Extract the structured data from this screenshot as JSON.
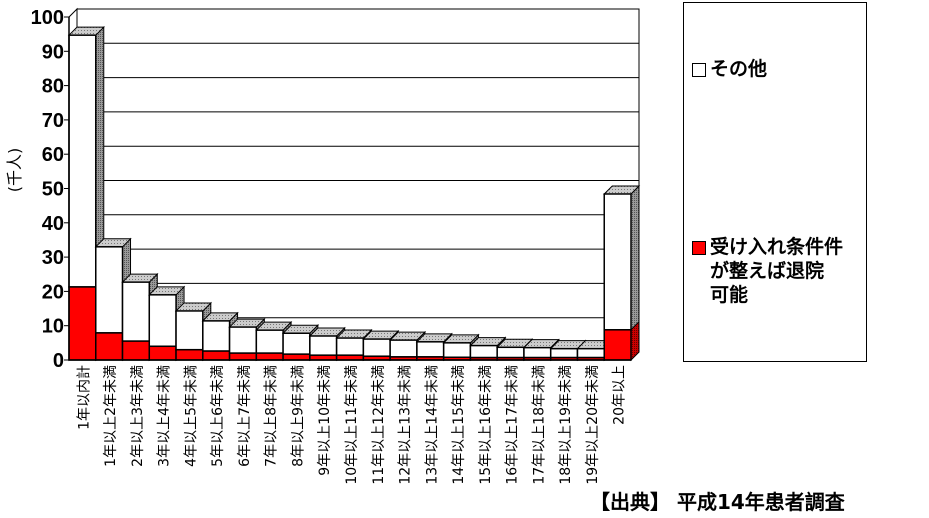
{
  "chart_data": {
    "type": "bar",
    "stacked": true,
    "ylabel": "(千人)",
    "ylim": [
      0,
      100
    ],
    "yticks": [
      0,
      10,
      20,
      30,
      40,
      50,
      60,
      70,
      80,
      90,
      100
    ],
    "grid": true,
    "legend_position": "right",
    "categories": [
      "1年以内計",
      "1年以上2年未満",
      "2年以上3年未満",
      "3年以上4年未満",
      "4年以上5年未満",
      "5年以上6年未満",
      "6年以上7年未満",
      "7年以上8年未満",
      "8年以上9年未満",
      "9年以上10年未満",
      "10年以上11年未満",
      "11年以上12年未満",
      "12年以上13年未満",
      "13年以上14年未満",
      "14年以上15年未満",
      "15年以上16年未満",
      "16年以上17年未満",
      "17年以上18年未満",
      "18年以上19年未満",
      "19年以上20年未満",
      "20年以上"
    ],
    "series": [
      {
        "name": "受け入れ条件が整えば退院可能",
        "color": "#ff0000",
        "values": [
          21.3,
          7.9,
          5.5,
          4.0,
          3.0,
          2.6,
          2.0,
          2.0,
          1.7,
          1.4,
          1.4,
          1.1,
          0.9,
          0.9,
          0.8,
          0.7,
          0.7,
          0.7,
          0.7,
          0.7,
          8.8
        ]
      },
      {
        "name": "その他",
        "color": "#ffffff",
        "values": [
          73.4,
          25.1,
          17.2,
          15.0,
          11.3,
          8.8,
          7.6,
          6.7,
          6.1,
          5.6,
          5.0,
          5.0,
          4.9,
          4.4,
          4.2,
          3.5,
          3.0,
          2.9,
          2.6,
          2.6,
          39.6
        ]
      }
    ]
  },
  "legend": {
    "other": "その他",
    "discharge_line1": "受け入れ条件件",
    "discharge_line2": "が整えば退院",
    "discharge_line3": "可能"
  },
  "source": "【出典】 平成14年患者調査"
}
